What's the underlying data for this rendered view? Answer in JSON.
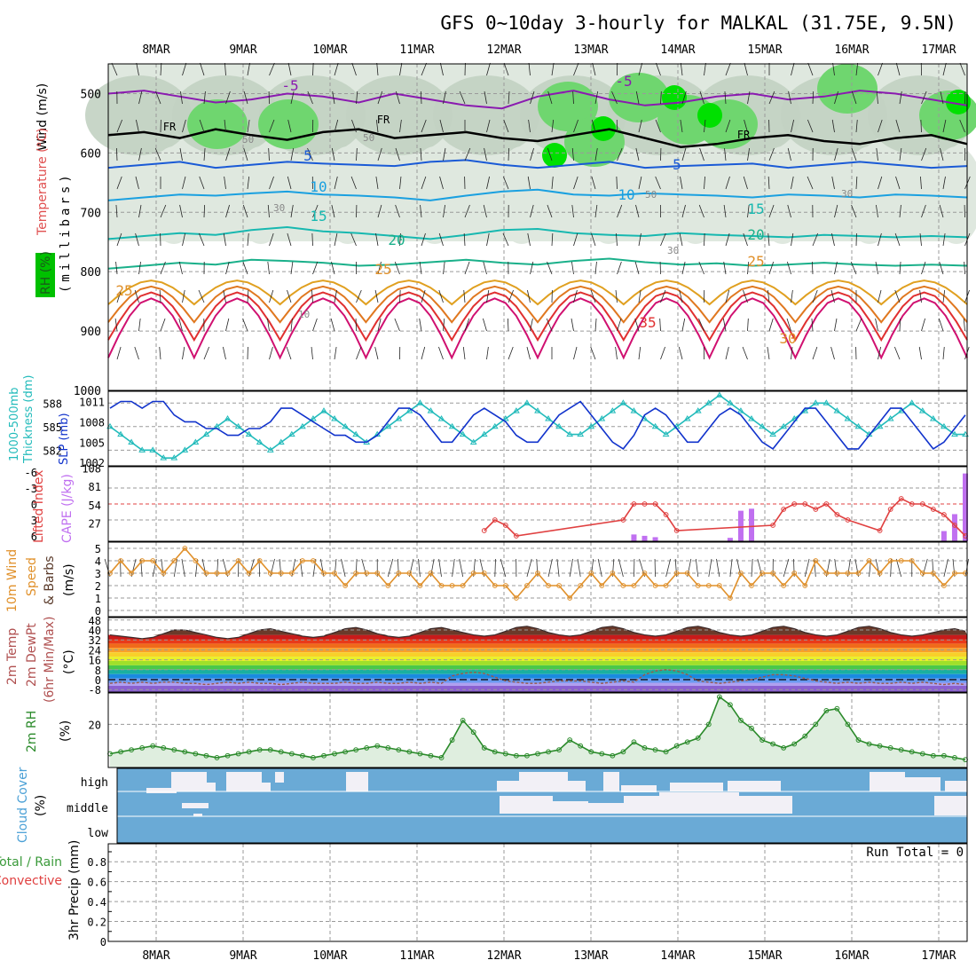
{
  "title": "GFS 0~10day 3-hourly for MALKAL (31.75E, 9.5N)",
  "dates": [
    "8MAR",
    "9MAR",
    "10MAR",
    "11MAR",
    "12MAR",
    "13MAR",
    "14MAR",
    "15MAR",
    "16MAR",
    "17MAR"
  ],
  "run_total_label": "Run Total = 0",
  "colors": {
    "frame": "#000000",
    "grid": "#9a9a9a",
    "rh_light": "#dfe8df",
    "rh_mid": "#c2d2c2",
    "rh_green": "#6fd66f",
    "rh_bright": "#00e000",
    "thickness": "#22bbbb",
    "slp": "#1133cc",
    "lifted_index": "#e04040",
    "cape": "#c070f0",
    "wind10": "#e0902a",
    "temp_fill": "#6b3a2a",
    "rh2m": "#2a8a2a",
    "cloud": "#6aaad6",
    "cloud_clear": "#f2f0f6"
  },
  "panels": {
    "upper_air": {
      "y_label_wind": "Wind (m/s)",
      "y_label_temp": "Temperature (°C)",
      "y_label_rh": "RH (%)",
      "y_label_mb": "(millibars)",
      "y_ticks": [
        "500",
        "600",
        "700",
        "800",
        "900",
        "1000"
      ],
      "isotherm_labels": [
        "-5",
        "-5",
        "FR",
        "FR",
        "FR",
        "5",
        "5",
        "10",
        "10",
        "15",
        "15",
        "20",
        "20",
        "25",
        "25",
        "25",
        "35",
        "30"
      ],
      "rh_contour_labels": [
        "50",
        "50",
        "30",
        "30",
        "30",
        "50",
        "10"
      ]
    },
    "thickness_slp": {
      "y_label_thk": "1000-500mb",
      "y_label_thk2": "Thickness (dm)",
      "y_label_slp": "SLP (mb)",
      "left_ticks": [
        "588",
        "585",
        "582"
      ],
      "right_ticks": [
        "1011",
        "1008",
        "1005",
        "1002"
      ]
    },
    "stability": {
      "y_label_li": "Lifted Index",
      "y_label_cape": "CAPE (J/kg)",
      "left_ticks": [
        "-6",
        "-3",
        "0",
        "3",
        "6"
      ],
      "right_ticks": [
        "108",
        "81",
        "54",
        "27"
      ]
    },
    "wind10m": {
      "y_label_1": "10m Wind",
      "y_label_2": "Speed",
      "y_label_3": "& Barbs",
      "y_label_unit": "(m/s)",
      "ticks": [
        "5",
        "4",
        "3",
        "2",
        "1",
        "0"
      ]
    },
    "temp2m": {
      "y_label_1": "2m Temp",
      "y_label_2": "2m DewPt",
      "y_label_3": "(6hr Min/Max)",
      "y_label_unit": "(°C)",
      "ticks": [
        "48",
        "40",
        "32",
        "24",
        "16",
        "8",
        "0",
        "-8"
      ]
    },
    "rh2m": {
      "y_label": "2m RH",
      "y_label_unit": "(%)",
      "ticks": [
        "20"
      ]
    },
    "cloud": {
      "y_label": "Cloud Cover",
      "y_label_unit": "(%)",
      "levels": [
        "high",
        "middle",
        "low"
      ]
    },
    "precip": {
      "y_label_1": "Total / Rain",
      "y_label_2": "Convective",
      "y_label_3": "3hr Precip (mm)",
      "ticks": [
        "0.8",
        "0.6",
        "0.4",
        "0.2",
        "0"
      ]
    }
  },
  "chart_data": {
    "type": "line",
    "x_start": "2024-03-07T15:00Z",
    "x_step_hours": 3,
    "thickness_dm": [
      585,
      584,
      583,
      582,
      582,
      581,
      581,
      582,
      583,
      584,
      585,
      586,
      585,
      584,
      583,
      582,
      583,
      584,
      585,
      586,
      587,
      586,
      585,
      584,
      583,
      584,
      585,
      586,
      587,
      588,
      587,
      586,
      585,
      584,
      583,
      584,
      585,
      586,
      587,
      588,
      587,
      586,
      585,
      584,
      584,
      585,
      586,
      587,
      588,
      587,
      586,
      585,
      584,
      585,
      586,
      587,
      588,
      589,
      588,
      587,
      586,
      585,
      584,
      585,
      586,
      587,
      588,
      588,
      587,
      586,
      585,
      584,
      585,
      586,
      587,
      588,
      587,
      586,
      585,
      584,
      584
    ],
    "slp_mb": [
      1010,
      1011,
      1011,
      1010,
      1011,
      1011,
      1009,
      1008,
      1008,
      1007,
      1007,
      1006,
      1006,
      1007,
      1007,
      1008,
      1010,
      1010,
      1009,
      1008,
      1007,
      1006,
      1006,
      1005,
      1005,
      1006,
      1008,
      1010,
      1010,
      1009,
      1007,
      1005,
      1005,
      1007,
      1009,
      1010,
      1009,
      1008,
      1006,
      1005,
      1005,
      1007,
      1009,
      1010,
      1011,
      1009,
      1007,
      1005,
      1004,
      1006,
      1009,
      1010,
      1009,
      1007,
      1005,
      1005,
      1007,
      1009,
      1010,
      1009,
      1007,
      1005,
      1004,
      1006,
      1008,
      1010,
      1010,
      1008,
      1006,
      1004,
      1004,
      1006,
      1008,
      1010,
      1010,
      1008,
      1006,
      1004,
      1005,
      1007,
      1009
    ],
    "lifted_index": [
      null,
      null,
      null,
      null,
      null,
      null,
      null,
      null,
      null,
      null,
      null,
      null,
      null,
      null,
      null,
      null,
      null,
      null,
      null,
      null,
      null,
      null,
      null,
      null,
      null,
      null,
      null,
      null,
      null,
      null,
      null,
      null,
      null,
      null,
      null,
      5,
      3,
      4,
      6,
      null,
      null,
      null,
      null,
      null,
      null,
      null,
      null,
      null,
      3,
      0,
      0,
      0,
      2,
      5,
      null,
      null,
      null,
      null,
      null,
      null,
      null,
      null,
      4,
      1,
      0,
      0,
      1,
      0,
      2,
      3,
      null,
      null,
      5,
      1,
      -1,
      0,
      0,
      1,
      2,
      4,
      6
    ],
    "cape_jkg": [
      0,
      0,
      0,
      0,
      0,
      0,
      0,
      0,
      0,
      0,
      0,
      0,
      0,
      0,
      0,
      0,
      0,
      0,
      0,
      0,
      0,
      0,
      0,
      0,
      0,
      0,
      0,
      0,
      0,
      0,
      0,
      0,
      0,
      0,
      0,
      0,
      0,
      0,
      0,
      0,
      0,
      0,
      0,
      0,
      0,
      0,
      0,
      0,
      0,
      10,
      8,
      6,
      0,
      0,
      0,
      0,
      0,
      0,
      5,
      45,
      48,
      0,
      0,
      0,
      0,
      0,
      0,
      0,
      0,
      0,
      0,
      0,
      0,
      0,
      0,
      0,
      0,
      0,
      15,
      40,
      100
    ],
    "wind10m_ms": [
      3,
      4,
      3,
      4,
      4,
      3,
      4,
      5,
      4,
      3,
      3,
      3,
      4,
      3,
      4,
      3,
      3,
      3,
      4,
      4,
      3,
      3,
      2,
      3,
      3,
      3,
      2,
      3,
      3,
      2,
      3,
      2,
      2,
      2,
      3,
      3,
      2,
      2,
      1,
      2,
      3,
      2,
      2,
      1,
      2,
      3,
      2,
      3,
      2,
      2,
      3,
      2,
      2,
      3,
      3,
      2,
      2,
      2,
      1,
      3,
      2,
      3,
      3,
      2,
      3,
      2,
      4,
      3,
      3,
      3,
      3,
      4,
      3,
      4,
      4,
      4,
      3,
      3,
      2,
      3,
      3
    ],
    "temp2m_c": [
      36,
      35,
      34,
      33,
      34,
      37,
      40,
      40,
      38,
      36,
      34,
      33,
      34,
      37,
      40,
      41,
      39,
      37,
      35,
      34,
      35,
      38,
      41,
      42,
      40,
      37,
      35,
      34,
      35,
      38,
      41,
      42,
      40,
      38,
      36,
      35,
      36,
      39,
      42,
      43,
      41,
      38,
      36,
      35,
      36,
      39,
      42,
      43,
      41,
      38,
      36,
      35,
      36,
      39,
      42,
      43,
      41,
      38,
      36,
      35,
      36,
      39,
      42,
      43,
      41,
      38,
      36,
      35,
      36,
      39,
      42,
      43,
      41,
      38,
      36,
      35,
      36,
      38,
      40,
      41,
      39
    ],
    "dewpt2m_c": [
      -3,
      -2,
      -3,
      -2,
      -3,
      -2,
      -2,
      -3,
      -3,
      -4,
      -3,
      -2,
      -3,
      -2,
      -3,
      -3,
      -4,
      -3,
      -2,
      -3,
      -3,
      -3,
      -2,
      -3,
      -3,
      -2,
      -3,
      -3,
      -2,
      -3,
      -2,
      -3,
      3,
      5,
      6,
      5,
      2,
      -1,
      -2,
      -3,
      -3,
      -2,
      -1,
      -1,
      -1,
      -2,
      -3,
      -2,
      -1,
      -2,
      4,
      7,
      8,
      7,
      4,
      -1,
      -2,
      -3,
      -2,
      -1,
      0,
      2,
      4,
      4,
      3,
      1,
      -1,
      -2,
      -3,
      -2,
      -3,
      -2,
      -3,
      -3,
      -2,
      -3,
      -2,
      -3,
      -4,
      -3,
      -4
    ],
    "rh2m_pct": [
      5,
      6,
      7,
      8,
      9,
      8,
      7,
      6,
      5,
      4,
      3,
      4,
      5,
      6,
      7,
      7,
      6,
      5,
      4,
      3,
      4,
      5,
      6,
      7,
      8,
      9,
      8,
      7,
      6,
      5,
      4,
      3,
      12,
      22,
      16,
      8,
      6,
      5,
      4,
      4,
      5,
      6,
      7,
      12,
      9,
      6,
      5,
      4,
      6,
      11,
      8,
      7,
      6,
      9,
      11,
      13,
      20,
      34,
      30,
      22,
      18,
      12,
      10,
      8,
      10,
      14,
      20,
      27,
      28,
      20,
      12,
      10,
      9,
      8,
      7,
      6,
      5,
      4,
      4,
      3,
      2
    ],
    "precip_mm": [
      0,
      0,
      0,
      0,
      0,
      0,
      0,
      0,
      0,
      0,
      0,
      0,
      0,
      0,
      0,
      0,
      0,
      0,
      0,
      0,
      0,
      0,
      0,
      0,
      0,
      0,
      0,
      0,
      0,
      0,
      0,
      0,
      0,
      0,
      0,
      0,
      0,
      0,
      0,
      0,
      0,
      0,
      0,
      0,
      0,
      0,
      0,
      0,
      0,
      0,
      0,
      0,
      0,
      0,
      0,
      0,
      0,
      0,
      0,
      0,
      0,
      0,
      0,
      0,
      0,
      0,
      0,
      0,
      0,
      0,
      0,
      0,
      0,
      0,
      0,
      0,
      0,
      0,
      0,
      0,
      0
    ],
    "isotherms": [
      {
        "name": "-5",
        "level_mb": [
          500,
          495,
          505,
          515,
          510,
          500,
          505,
          515,
          500,
          510,
          520,
          525,
          505,
          495,
          510,
          520,
          515,
          505,
          500,
          510,
          505,
          495,
          500,
          510,
          520
        ]
      },
      {
        "name": "FR",
        "level_mb": [
          570,
          565,
          575,
          560,
          570,
          578,
          565,
          560,
          575,
          570,
          565,
          575,
          580,
          570,
          560,
          575,
          590,
          585,
          575,
          570,
          580,
          585,
          575,
          570,
          585
        ]
      },
      {
        "name": "5",
        "level_mb": [
          625,
          620,
          615,
          625,
          620,
          615,
          618,
          620,
          622,
          615,
          612,
          620,
          625,
          620,
          615,
          625,
          622,
          620,
          618,
          625,
          620,
          615,
          620,
          625,
          622
        ]
      },
      {
        "name": "10",
        "level_mb": [
          680,
          675,
          670,
          672,
          668,
          665,
          670,
          672,
          675,
          680,
          672,
          665,
          662,
          670,
          672,
          668,
          670,
          672,
          675,
          670,
          672,
          675,
          670,
          672,
          675
        ]
      },
      {
        "name": "15",
        "level_mb": [
          745,
          740,
          735,
          738,
          730,
          725,
          732,
          735,
          740,
          745,
          738,
          730,
          728,
          735,
          738,
          740,
          735,
          738,
          740,
          742,
          738,
          740,
          742,
          740,
          742
        ]
      },
      {
        "name": "20",
        "level_mb": [
          795,
          790,
          785,
          788,
          780,
          782,
          785,
          790,
          788,
          784,
          780,
          785,
          788,
          782,
          778,
          784,
          788,
          786,
          790,
          788,
          785,
          788,
          790,
          788,
          790
        ]
      }
    ]
  }
}
